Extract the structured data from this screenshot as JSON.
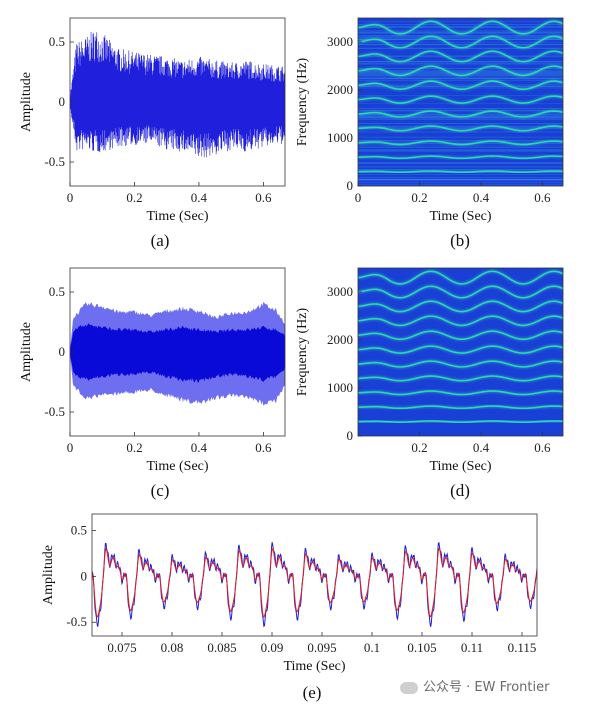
{
  "chart_data": [
    {
      "id": "a",
      "panel_label": "(a)",
      "type": "line",
      "xlabel": "Time (Sec)",
      "ylabel": "Amplitude",
      "xlim": [
        0,
        0.667
      ],
      "ylim": [
        -0.7,
        0.7
      ],
      "xticks": [
        0,
        0.2,
        0.4,
        0.6
      ],
      "xtick_labels": [
        "0",
        "0.2",
        "0.4",
        "0.6"
      ],
      "yticks": [
        -0.5,
        0,
        0.5
      ],
      "ytick_labels": [
        "-0.5",
        "0",
        "0.5"
      ],
      "color": "#1f1fdc",
      "envelope": {
        "t": [
          0,
          0.02,
          0.05,
          0.08,
          0.1,
          0.15,
          0.2,
          0.25,
          0.3,
          0.35,
          0.4,
          0.45,
          0.5,
          0.55,
          0.6,
          0.667
        ],
        "upper": [
          0.05,
          0.5,
          0.55,
          0.62,
          0.58,
          0.45,
          0.42,
          0.4,
          0.38,
          0.35,
          0.38,
          0.35,
          0.33,
          0.35,
          0.32,
          0.3
        ],
        "lower": [
          -0.05,
          -0.42,
          -0.4,
          -0.43,
          -0.42,
          -0.38,
          -0.36,
          -0.35,
          -0.4,
          -0.42,
          -0.48,
          -0.45,
          -0.4,
          -0.42,
          -0.38,
          -0.35
        ]
      }
    },
    {
      "id": "b",
      "panel_label": "(b)",
      "type": "heatmap",
      "xlabel": "Time (Sec)",
      "ylabel": "Frequency (Hz)",
      "xlim": [
        0,
        0.667
      ],
      "ylim": [
        0,
        3500
      ],
      "xticks": [
        0,
        0.2,
        0.4,
        0.6
      ],
      "xtick_labels": [
        "0",
        "0.2",
        "0.4",
        "0.6"
      ],
      "yticks": [
        0,
        1000,
        2000,
        3000
      ],
      "ytick_labels": [
        "0",
        "1000",
        "2000",
        "3000"
      ],
      "background_color": "#1a3fd6",
      "harmonic_color": "#2ee0b0",
      "fundamental_hz": 300,
      "harmonics": 11,
      "vibrato_depth": 0.04,
      "noise": true
    },
    {
      "id": "c",
      "panel_label": "(c)",
      "type": "line",
      "xlabel": "Time (Sec)",
      "ylabel": "Amplitude",
      "xlim": [
        0,
        0.667
      ],
      "ylim": [
        -0.7,
        0.7
      ],
      "xticks": [
        0,
        0.2,
        0.4,
        0.6
      ],
      "xtick_labels": [
        "0",
        "0.2",
        "0.4",
        "0.6"
      ],
      "yticks": [
        -0.5,
        0,
        0.5
      ],
      "ytick_labels": [
        "-0.5",
        "0",
        "0.5"
      ],
      "outer_color": "#5555ee",
      "inner_color": "#0a0ad8",
      "envelope": {
        "t": [
          0,
          0.01,
          0.05,
          0.1,
          0.15,
          0.2,
          0.25,
          0.3,
          0.35,
          0.4,
          0.45,
          0.5,
          0.55,
          0.6,
          0.64,
          0.667
        ],
        "upper": [
          0.02,
          0.3,
          0.42,
          0.4,
          0.35,
          0.35,
          0.32,
          0.36,
          0.38,
          0.36,
          0.3,
          0.34,
          0.35,
          0.42,
          0.36,
          0.25
        ],
        "lower": [
          -0.02,
          -0.3,
          -0.4,
          -0.38,
          -0.36,
          -0.35,
          -0.33,
          -0.38,
          -0.42,
          -0.45,
          -0.4,
          -0.38,
          -0.4,
          -0.45,
          -0.42,
          -0.3
        ],
        "inner_upper": [
          0.01,
          0.2,
          0.25,
          0.22,
          0.2,
          0.2,
          0.18,
          0.2,
          0.22,
          0.2,
          0.18,
          0.2,
          0.2,
          0.22,
          0.2,
          0.15
        ],
        "inner_lower": [
          -0.01,
          -0.2,
          -0.25,
          -0.22,
          -0.2,
          -0.2,
          -0.18,
          -0.22,
          -0.25,
          -0.26,
          -0.22,
          -0.2,
          -0.22,
          -0.25,
          -0.22,
          -0.15
        ]
      }
    },
    {
      "id": "d",
      "panel_label": "(d)",
      "type": "heatmap",
      "xlabel": "Time (Sec)",
      "ylabel": "Frequency (Hz)",
      "xlim": [
        0,
        0.667
      ],
      "ylim": [
        0,
        3500
      ],
      "xticks": [
        0.2,
        0.4,
        0.6
      ],
      "xtick_labels": [
        "0.2",
        "0.4",
        "0.6"
      ],
      "yticks": [
        0,
        1000,
        2000,
        3000
      ],
      "ytick_labels": [
        "0",
        "1000",
        "2000",
        "3000"
      ],
      "background_color": "#1a3fd6",
      "harmonic_color": "#2ee0b0",
      "fundamental_hz": 300,
      "harmonics": 11,
      "vibrato_depth": 0.04,
      "noise": false
    },
    {
      "id": "e",
      "panel_label": "(e)",
      "type": "line",
      "xlabel": "Time (Sec)",
      "ylabel": "Amplitude",
      "xlim": [
        0.072,
        0.1165
      ],
      "ylim": [
        -0.65,
        0.68
      ],
      "xticks": [
        0.075,
        0.08,
        0.085,
        0.09,
        0.095,
        0.1,
        0.105,
        0.11,
        0.115
      ],
      "xtick_labels": [
        "0.075",
        "0.08",
        "0.085",
        "0.09",
        "0.095",
        "0.1",
        "0.105",
        "0.11",
        "0.115"
      ],
      "yticks": [
        -0.5,
        0,
        0.5
      ],
      "ytick_labels": [
        "-0.5",
        "0",
        "0.5"
      ],
      "series": [
        {
          "color": "#2020d0",
          "period_s": 0.00333,
          "amplitude": 0.42
        },
        {
          "color": "#e02020",
          "period_s": 0.00333,
          "amplitude": 0.36
        }
      ]
    }
  ],
  "watermark": "公众号 · EW Frontier"
}
